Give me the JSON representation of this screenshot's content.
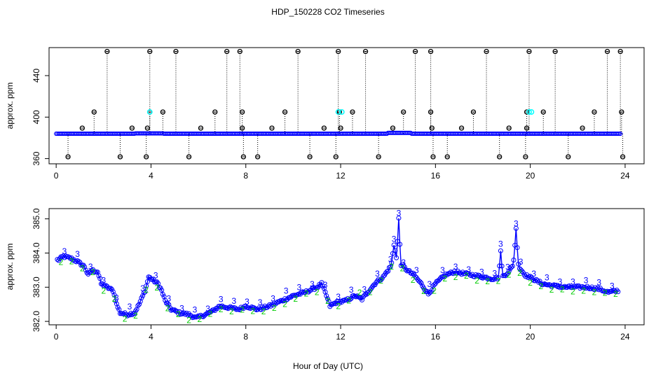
{
  "chart_data": {
    "title": "HDP_150228  CO2 Timeseries",
    "xlabel": "Hour of Day (UTC)",
    "colors": {
      "main": "#0000ff",
      "alt": "#00cc00",
      "flag": "#00ffff",
      "outlier": "#000000"
    },
    "panels": [
      {
        "type": "scatter",
        "ylabel": "approx. ppm",
        "xlim": [
          -0.3,
          24.8
        ],
        "ylim": [
          355,
          467
        ],
        "xticks": [
          0,
          4,
          8,
          12,
          16,
          20,
          24
        ],
        "yticks": [
          360,
          400,
          440
        ],
        "baseline": 384,
        "high_outliers": [
          2.15,
          3.95,
          5.05,
          7.2,
          7.75,
          10.2,
          11.9,
          13.05,
          15.15,
          15.8,
          18.15,
          19.95,
          21.05,
          23.25,
          23.8
        ],
        "mid_outliers": [
          1.6,
          3.95,
          4.5,
          6.7,
          7.85,
          9.65,
          11.95,
          12.5,
          14.65,
          15.8,
          17.6,
          19.85,
          20.55,
          22.7,
          23.85
        ],
        "low_outliers": [
          0.5,
          2.7,
          3.8,
          5.6,
          7.9,
          8.5,
          10.7,
          11.8,
          13.6,
          15.9,
          16.5,
          18.7,
          19.8,
          21.6,
          23.9
        ],
        "small_outliers": [
          1.1,
          3.2,
          3.85,
          6.1,
          7.85,
          9.1,
          11.3,
          12.0,
          14.2,
          15.85,
          17.1,
          19.1,
          19.85,
          22.2
        ],
        "flagged": [
          3.95,
          11.9,
          12.05,
          19.95,
          20.05
        ]
      },
      {
        "type": "line",
        "ylabel": "approx. ppm",
        "xlim": [
          -0.3,
          24.8
        ],
        "ylim": [
          381.9,
          385.3
        ],
        "xticks": [
          0,
          4,
          8,
          12,
          16,
          20,
          24
        ],
        "yticks": [
          382.0,
          383.0,
          384.0,
          385.0
        ],
        "ytick_labels": [
          "382.0",
          "383.0",
          "384.0",
          "385.0"
        ],
        "keypoints": [
          [
            0.1,
            383.8
          ],
          [
            0.3,
            383.9
          ],
          [
            0.6,
            383.85
          ],
          [
            0.9,
            383.75
          ],
          [
            1.2,
            383.6
          ],
          [
            1.35,
            383.35
          ],
          [
            1.5,
            383.5
          ],
          [
            1.75,
            383.45
          ],
          [
            1.9,
            383.1
          ],
          [
            2.15,
            383.0
          ],
          [
            2.4,
            382.9
          ],
          [
            2.55,
            382.5
          ],
          [
            2.7,
            382.25
          ],
          [
            3.0,
            382.2
          ],
          [
            3.3,
            382.25
          ],
          [
            3.5,
            382.5
          ],
          [
            3.75,
            382.9
          ],
          [
            3.9,
            383.3
          ],
          [
            4.1,
            383.2
          ],
          [
            4.3,
            383.1
          ],
          [
            4.45,
            382.9
          ],
          [
            4.6,
            382.6
          ],
          [
            4.85,
            382.35
          ],
          [
            5.2,
            382.25
          ],
          [
            5.6,
            382.2
          ],
          [
            5.9,
            382.1
          ],
          [
            6.3,
            382.2
          ],
          [
            6.6,
            382.3
          ],
          [
            6.9,
            382.45
          ],
          [
            7.3,
            382.4
          ],
          [
            7.7,
            382.35
          ],
          [
            8.0,
            382.45
          ],
          [
            8.5,
            382.35
          ],
          [
            9.0,
            382.45
          ],
          [
            9.5,
            382.6
          ],
          [
            10.0,
            382.75
          ],
          [
            10.5,
            382.85
          ],
          [
            11.0,
            383.0
          ],
          [
            11.2,
            383.1
          ],
          [
            11.4,
            382.75
          ],
          [
            11.55,
            382.45
          ],
          [
            11.8,
            382.55
          ],
          [
            12.2,
            382.6
          ],
          [
            12.6,
            382.75
          ],
          [
            12.9,
            382.65
          ],
          [
            13.2,
            382.9
          ],
          [
            13.5,
            383.15
          ],
          [
            13.8,
            383.3
          ],
          [
            14.1,
            383.6
          ],
          [
            14.3,
            383.85
          ],
          [
            14.5,
            383.7
          ],
          [
            14.8,
            383.5
          ],
          [
            15.1,
            383.35
          ],
          [
            15.4,
            383.1
          ],
          [
            15.7,
            382.8
          ],
          [
            16.0,
            383.1
          ],
          [
            16.4,
            383.35
          ],
          [
            16.8,
            383.45
          ],
          [
            17.2,
            383.4
          ],
          [
            17.6,
            383.35
          ],
          [
            18.0,
            383.3
          ],
          [
            18.4,
            383.25
          ],
          [
            18.8,
            383.3
          ],
          [
            19.1,
            383.45
          ],
          [
            19.3,
            383.7
          ],
          [
            19.5,
            383.6
          ],
          [
            19.8,
            383.35
          ],
          [
            20.1,
            383.25
          ],
          [
            20.5,
            383.1
          ],
          [
            20.9,
            383.05
          ],
          [
            21.4,
            383.0
          ],
          [
            21.9,
            383.0
          ],
          [
            22.4,
            383.0
          ],
          [
            22.9,
            382.95
          ],
          [
            23.3,
            382.85
          ],
          [
            23.7,
            382.9
          ]
        ],
        "spikes": [
          [
            14.25,
            384.25,
            0.22
          ],
          [
            14.45,
            385.0,
            0.18
          ],
          [
            18.75,
            384.1,
            0.16
          ],
          [
            19.4,
            384.7,
            0.22
          ]
        ],
        "green_spikes": [
          [
            12.75,
            383.45,
            0.15
          ]
        ],
        "labels_main": "3",
        "labels_alt": "2"
      }
    ]
  }
}
